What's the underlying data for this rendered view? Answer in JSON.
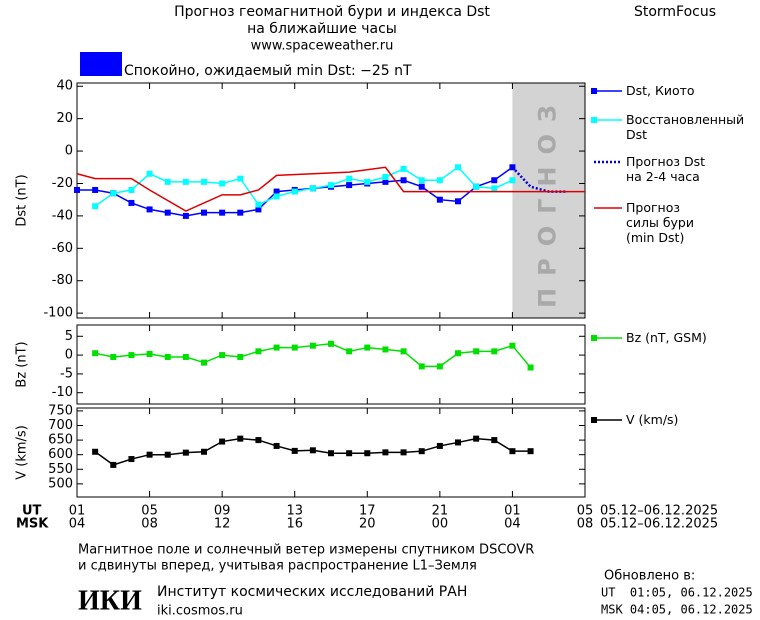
{
  "header": {
    "title": "Прогноз геомагнитной бури и индекса Dst",
    "subtitle": "на ближайшие часы",
    "site": "www.spaceweather.ru",
    "brand": "StormFocus"
  },
  "status": {
    "text": "Спокойно, ожидаемый min Dst: −25 nT",
    "color": "#0000ff"
  },
  "chart_data": [
    {
      "type": "line",
      "ylabel": "Dst (nT)",
      "ylim": [
        -103,
        42
      ],
      "yticks": [
        40,
        20,
        0,
        -20,
        -40,
        -60,
        -80,
        -100
      ],
      "forecast_band": {
        "xlim": [
          24,
          28
        ],
        "label": "ПРОГНОЗ",
        "color": "#d3d3d3"
      },
      "series": [
        {
          "name": "Dst, Киото",
          "color": "#0000ff",
          "marker": "square",
          "line_style": "solid",
          "x": [
            0,
            1,
            2,
            3,
            4,
            5,
            6,
            7,
            8,
            9,
            10,
            11,
            12,
            13,
            14,
            15,
            16,
            17,
            18,
            19,
            20,
            21,
            22,
            23,
            24
          ],
          "values": [
            -24,
            -24,
            -26,
            -32,
            -36,
            -38,
            -40,
            -38,
            -38,
            -38,
            -36,
            -25,
            -24,
            -23,
            -22,
            -21,
            -20,
            -19,
            -18,
            -22,
            -30,
            -31,
            -22,
            -18,
            -10
          ]
        },
        {
          "name": "Восстановленный\nDst",
          "color": "#00ffff",
          "marker": "square",
          "line_style": "solid",
          "x": [
            1,
            2,
            3,
            4,
            5,
            6,
            7,
            8,
            9,
            10,
            11,
            12,
            13,
            14,
            15,
            16,
            17,
            18,
            19,
            20,
            21,
            22,
            23,
            24
          ],
          "values": [
            -34,
            -26,
            -24,
            -14,
            -19,
            -19,
            -19,
            -20,
            -17,
            -33,
            -28,
            -25,
            -23,
            -21,
            -17,
            -19,
            -16,
            -11,
            -18,
            -18,
            -10,
            -22,
            -23,
            -18
          ]
        },
        {
          "name": "Прогноз Dst\nна 2-4 часа",
          "color": "#0000cc",
          "marker": "none",
          "line_style": "dotted",
          "x": [
            24,
            25,
            26,
            27
          ],
          "values": [
            -10,
            -22,
            -25,
            -25
          ]
        },
        {
          "name": "Прогноз\nсилы бури\n(min Dst)",
          "color": "#dd0000",
          "marker": "none",
          "line_style": "solid",
          "x": [
            0,
            1,
            3,
            4,
            6,
            8,
            9,
            10,
            11,
            13,
            15,
            17,
            18,
            28
          ],
          "values": [
            -14,
            -17,
            -17,
            -24,
            -37,
            -27,
            -27,
            -24,
            -15,
            -14,
            -13,
            -10,
            -25,
            -25
          ]
        }
      ]
    },
    {
      "type": "line",
      "ylabel": "Bz (nT)",
      "ylim": [
        -13,
        8
      ],
      "yticks": [
        5,
        0,
        -5,
        -10
      ],
      "series": [
        {
          "name": "Bz (nT, GSM)",
          "color": "#00e000",
          "marker": "square",
          "line_style": "solid",
          "x": [
            1,
            2,
            3,
            4,
            5,
            6,
            7,
            8,
            9,
            10,
            11,
            12,
            13,
            14,
            15,
            16,
            17,
            18,
            19,
            20,
            21,
            22,
            23,
            24,
            25
          ],
          "values": [
            0.5,
            -0.5,
            0,
            0.3,
            -0.5,
            -0.5,
            -2,
            0,
            -0.5,
            1,
            2,
            2,
            2.5,
            3,
            1,
            2,
            1.5,
            1,
            -3,
            -3,
            0.5,
            1,
            1,
            2.5,
            -3.3
          ]
        }
      ]
    },
    {
      "type": "line",
      "ylabel": "V (km/s)",
      "ylim": [
        455,
        760
      ],
      "yticks": [
        750,
        700,
        650,
        600,
        550,
        500
      ],
      "xlim": [
        0,
        28
      ],
      "xlabel": "UT",
      "xlabel2": "MSK",
      "xdates": "05.12–06.12.2025",
      "xdates2": "05.12–06.12.2025",
      "xticks": [
        {
          "value": 0,
          "label": "01"
        },
        {
          "value": 4,
          "label": "05"
        },
        {
          "value": 8,
          "label": "09"
        },
        {
          "value": 12,
          "label": "13"
        },
        {
          "value": 16,
          "label": "17"
        },
        {
          "value": 20,
          "label": "21"
        },
        {
          "value": 24,
          "label": "01"
        },
        {
          "value": 28,
          "label": "05"
        }
      ],
      "xticks2": [
        {
          "value": 0,
          "label": "04"
        },
        {
          "value": 4,
          "label": "08"
        },
        {
          "value": 8,
          "label": "12"
        },
        {
          "value": 12,
          "label": "16"
        },
        {
          "value": 16,
          "label": "20"
        },
        {
          "value": 20,
          "label": "00"
        },
        {
          "value": 24,
          "label": "04"
        },
        {
          "value": 28,
          "label": "08"
        }
      ],
      "series": [
        {
          "name": "V (km/s)",
          "color": "#000000",
          "marker": "square",
          "line_style": "solid",
          "x": [
            1,
            2,
            3,
            4,
            5,
            6,
            7,
            8,
            9,
            10,
            11,
            12,
            13,
            14,
            15,
            16,
            17,
            18,
            19,
            20,
            21,
            22,
            23,
            24,
            25
          ],
          "values": [
            610,
            565,
            585,
            600,
            600,
            607,
            610,
            645,
            655,
            650,
            630,
            613,
            615,
            605,
            605,
            605,
            608,
            608,
            612,
            630,
            642,
            655,
            650,
            612,
            612
          ]
        }
      ]
    }
  ],
  "footer": {
    "note1": "Магнитное поле и солнечный ветер измерены спутником DSCOVR",
    "note2": "и сдвинуты вперед, учитывая распространение L1–Земля",
    "logo": "ИКИ",
    "institute": "Институт космических исследований РАН",
    "url": "iki.cosmos.ru",
    "updated": "Обновлено в:",
    "updated_ut": "UT  01:05, 06.12.2025",
    "updated_msk": "MSK 04:05, 06.12.2025"
  }
}
